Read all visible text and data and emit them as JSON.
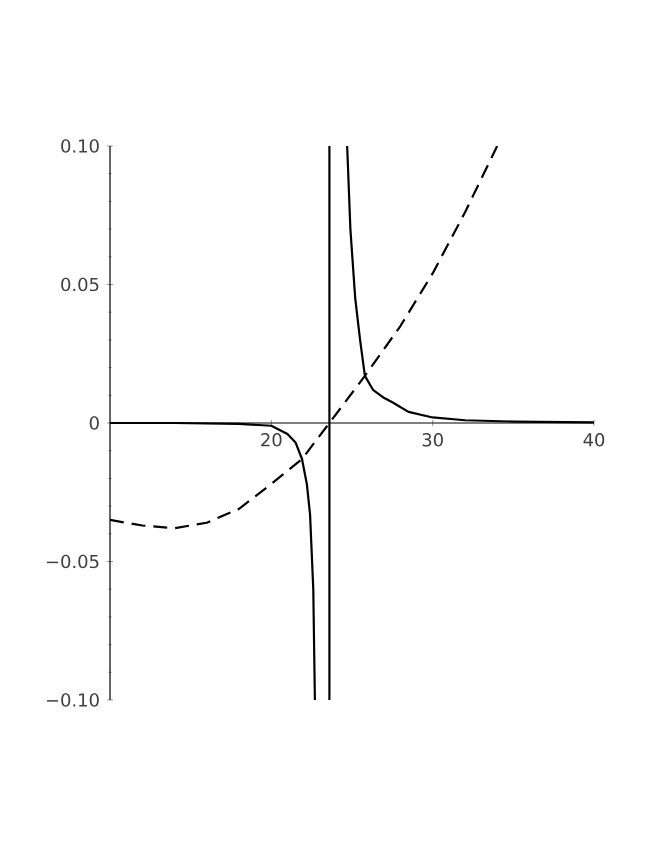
{
  "chart_data": {
    "type": "line",
    "xlim": [
      10,
      40
    ],
    "ylim": [
      -0.1,
      0.1
    ],
    "xticks": [
      20,
      30,
      40
    ],
    "yticks": [
      {
        "value": -0.1,
        "label": "−0.10"
      },
      {
        "value": -0.05,
        "label": "−0.05"
      },
      0,
      {
        "value": 0.05,
        "label": "0.05"
      },
      {
        "value": 0.1,
        "label": "0.10"
      }
    ],
    "marker": "none",
    "series": [
      {
        "color": "#000000",
        "line_style": "solid",
        "x": [
          10,
          14,
          18,
          20,
          21,
          21.5,
          21.9,
          22.2,
          22.4,
          22.6,
          22.7,
          null,
          23.6,
          23.6,
          null,
          24.7,
          24.9,
          25.2,
          25.5,
          25.8,
          26.3,
          27,
          27.5,
          28.5,
          30,
          32,
          35,
          40
        ],
        "values": [
          0,
          0,
          -0.0003,
          -0.001,
          -0.004,
          -0.007,
          -0.013,
          -0.022,
          -0.033,
          -0.06,
          -0.1,
          null,
          -0.1,
          0.1,
          null,
          0.1,
          0.07,
          0.045,
          0.03,
          0.017,
          0.012,
          0.009,
          0.0075,
          0.004,
          0.002,
          0.001,
          0.0005,
          0.0002
        ]
      },
      {
        "color": "#000000",
        "line_style": "dashed",
        "x": [
          10,
          12,
          14,
          16,
          18,
          20,
          21.9,
          23.6,
          25.8,
          28,
          30,
          32,
          34
        ],
        "values": [
          -0.035,
          -0.037,
          -0.038,
          -0.036,
          -0.031,
          -0.022,
          -0.013,
          0,
          0.017,
          0.035,
          0.054,
          0.076,
          0.1
        ]
      }
    ]
  }
}
